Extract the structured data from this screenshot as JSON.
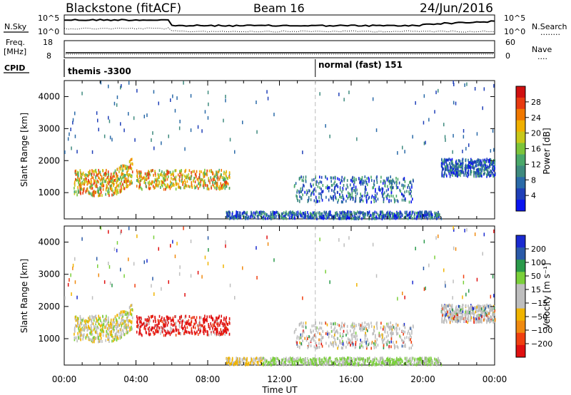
{
  "header": {
    "station": "Blackstone (fitACF)",
    "beam": "Beam 16",
    "date": "24/Jun/2016"
  },
  "status_panel": {
    "left_label": "N.Sky",
    "left_ticks": [
      "10^5",
      "10^0"
    ],
    "right_ticks": [
      "10^5",
      "10^0"
    ],
    "right_label": "N.Search",
    "right_label_dots": "........"
  },
  "freq_panel": {
    "label_line1": "Freq.",
    "label_line2": "[MHz]",
    "left_ticks": [
      "18",
      "8"
    ],
    "right_ticks": [
      "60",
      "0"
    ],
    "right_label": "Nave",
    "right_label_dots": "...."
  },
  "cpid_panel": {
    "label": "CPID",
    "modes": [
      {
        "name": "themis -3300"
      },
      {
        "name": "normal (fast) 151"
      }
    ]
  },
  "chart_data": [
    {
      "type": "heatmap",
      "name": "power",
      "ylabel": "Slant Range [km]",
      "xlabel": "",
      "ylim": [
        180,
        4500
      ],
      "xlim": [
        0,
        24
      ],
      "yticks": [
        "1000",
        "2000",
        "3000",
        "4000"
      ],
      "colorbar": {
        "label": "Power [dB]",
        "ticks": [
          "4",
          "8",
          "12",
          "16",
          "20",
          "24",
          "28"
        ],
        "range": [
          0,
          30
        ],
        "colors": [
          "#0a14f0",
          "#1f3fb8",
          "#2a6aa8",
          "#3e8a7e",
          "#4aa86a",
          "#7cc43a",
          "#c8c81a",
          "#f0b000",
          "#f07800",
          "#e83a10",
          "#d01010"
        ]
      },
      "echo_regions": [
        {
          "t0": 0.5,
          "t1": 3.8,
          "r0": 900,
          "r1": 2200
        },
        {
          "t0": 4.0,
          "t1": 9.2,
          "r0": 1100,
          "r1": 1700
        },
        {
          "t0": 9.0,
          "t1": 21.0,
          "r0": 180,
          "r1": 400
        },
        {
          "t0": 12.8,
          "t1": 19.5,
          "r0": 700,
          "r1": 1500
        },
        {
          "t0": 21.0,
          "t1": 24.0,
          "r0": 1500,
          "r1": 2050
        }
      ]
    },
    {
      "type": "heatmap",
      "name": "velocity",
      "ylabel": "Slant Range [km]",
      "xlabel": "Time UT",
      "ylim": [
        180,
        4500
      ],
      "xlim": [
        0,
        24
      ],
      "yticks": [
        "1000",
        "2000",
        "3000",
        "4000"
      ],
      "xticks": [
        "00:00",
        "04:00",
        "08:00",
        "12:00",
        "16:00",
        "20:00",
        "00:00"
      ],
      "colorbar": {
        "label": "Velocity [m s⁻¹]",
        "ticks": [
          "200",
          "100",
          "50",
          "15",
          "−15",
          "−50",
          "−100",
          "−200"
        ],
        "range": [
          -250,
          250
        ],
        "colors": [
          "#e01010",
          "#f04010",
          "#f08a10",
          "#f0b400",
          "#bebebe",
          "#bebebe",
          "#7ad03a",
          "#2a9a4a",
          "#2a5aa8",
          "#1a2ad0"
        ]
      }
    }
  ],
  "mode_change_time": 14.0
}
